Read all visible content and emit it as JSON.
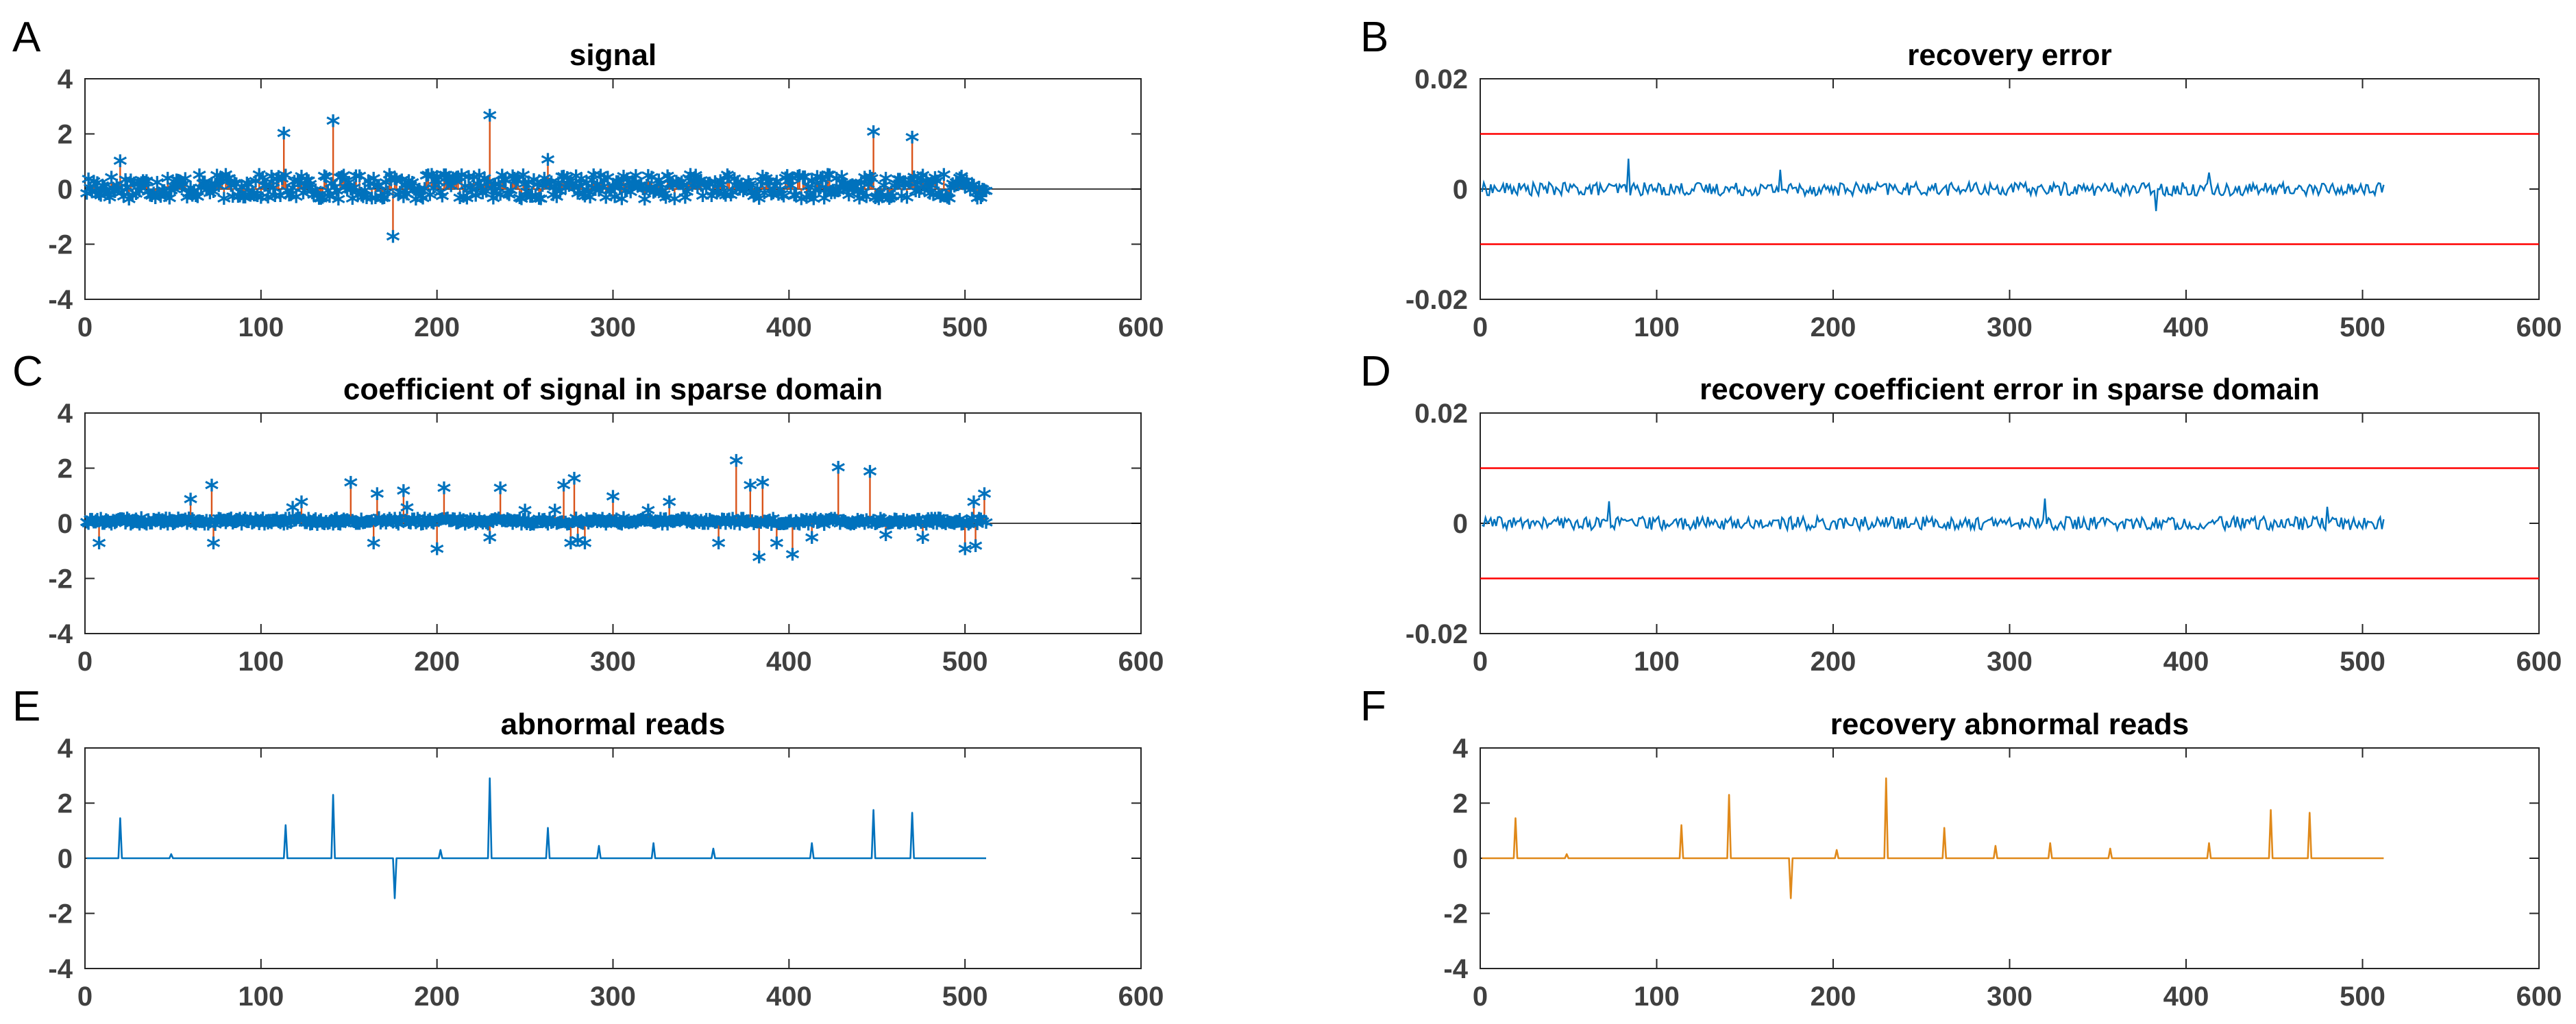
{
  "figure": {
    "panel_labels": [
      "A",
      "B",
      "C",
      "D",
      "E",
      "F"
    ]
  },
  "colors": {
    "blue": "#0072bd",
    "orange": "#d95319",
    "amber": "#e0891a",
    "red": "#ff0000",
    "axis": "#262626",
    "zero_line": "#000000"
  },
  "chart_data": [
    {
      "id": "A",
      "type": "stem",
      "title": "signal",
      "xlabel": "",
      "ylabel": "",
      "xlim": [
        0,
        600
      ],
      "ylim": [
        -4,
        4
      ],
      "xticks": [
        "0",
        "100",
        "200",
        "300",
        "400",
        "500",
        "600"
      ],
      "yticks": [
        "4",
        "2",
        "0",
        "-2",
        "-4"
      ],
      "n_points": 512,
      "noise_amplitude": 0.45,
      "spikes": [
        [
          20,
          0.95
        ],
        [
          113,
          1.95
        ],
        [
          141,
          2.4
        ],
        [
          175,
          -1.8
        ],
        [
          230,
          2.6
        ],
        [
          263,
          1.0
        ],
        [
          448,
          2.0
        ],
        [
          470,
          1.8
        ]
      ],
      "series": [
        {
          "name": "signal",
          "marker": "*",
          "color": "blue",
          "stem_color": "orange"
        }
      ]
    },
    {
      "id": "B",
      "type": "line",
      "title": "recovery error",
      "xlabel": "",
      "ylabel": "",
      "xlim": [
        0,
        600
      ],
      "ylim": [
        -0.02,
        0.02
      ],
      "xticks": [
        "0",
        "100",
        "200",
        "300",
        "400",
        "500",
        "600"
      ],
      "yticks": [
        "0.02",
        "0",
        "-0.02"
      ],
      "n_points": 512,
      "noise_amplitude": 0.0012,
      "spikes": [
        [
          84,
          0.0055
        ],
        [
          170,
          0.0035
        ],
        [
          383,
          -0.004
        ],
        [
          413,
          0.003
        ]
      ],
      "thresholds": [
        0.01,
        -0.01
      ],
      "series": [
        {
          "name": "recovery error",
          "color": "blue"
        }
      ]
    },
    {
      "id": "C",
      "type": "stem",
      "title": "coefficient of signal in sparse domain",
      "xlabel": "",
      "ylabel": "",
      "xlim": [
        0,
        600
      ],
      "ylim": [
        -4,
        4
      ],
      "xticks": [
        "0",
        "100",
        "200",
        "300",
        "400",
        "500",
        "600"
      ],
      "yticks": [
        "4",
        "2",
        "0",
        "-2",
        "-4"
      ],
      "n_points": 512,
      "noise_amplitude": 0.12,
      "spikes": [
        [
          8,
          -0.8
        ],
        [
          60,
          0.8
        ],
        [
          72,
          1.3
        ],
        [
          73,
          -0.8
        ],
        [
          118,
          0.5
        ],
        [
          123,
          0.7
        ],
        [
          151,
          1.4
        ],
        [
          164,
          -0.8
        ],
        [
          166,
          1.0
        ],
        [
          181,
          1.1
        ],
        [
          183,
          0.5
        ],
        [
          200,
          -1.0
        ],
        [
          204,
          1.2
        ],
        [
          230,
          -0.6
        ],
        [
          236,
          1.2
        ],
        [
          250,
          0.4
        ],
        [
          267,
          0.4
        ],
        [
          272,
          1.3
        ],
        [
          276,
          -0.8
        ],
        [
          278,
          1.55
        ],
        [
          280,
          -0.7
        ],
        [
          284,
          -0.8
        ],
        [
          300,
          0.9
        ],
        [
          320,
          0.4
        ],
        [
          332,
          0.7
        ],
        [
          360,
          -0.8
        ],
        [
          370,
          2.2
        ],
        [
          378,
          1.3
        ],
        [
          383,
          -1.3
        ],
        [
          385,
          1.4
        ],
        [
          393,
          -0.8
        ],
        [
          402,
          -1.2
        ],
        [
          413,
          -0.6
        ],
        [
          428,
          1.95
        ],
        [
          446,
          1.8
        ],
        [
          455,
          -0.5
        ],
        [
          476,
          -0.6
        ],
        [
          500,
          -1.0
        ],
        [
          505,
          0.7
        ],
        [
          506,
          -0.9
        ],
        [
          511,
          1.0
        ]
      ],
      "series": [
        {
          "name": "coefficient",
          "marker": "*",
          "color": "blue",
          "stem_color": "orange"
        }
      ]
    },
    {
      "id": "D",
      "type": "line",
      "title": "recovery coefficient error in sparse domain",
      "xlabel": "",
      "ylabel": "",
      "xlim": [
        0,
        600
      ],
      "ylim": [
        -0.02,
        0.02
      ],
      "xticks": [
        "0",
        "100",
        "200",
        "300",
        "400",
        "500",
        "600"
      ],
      "yticks": [
        "0.02",
        "0",
        "-0.02"
      ],
      "n_points": 512,
      "noise_amplitude": 0.0012,
      "spikes": [
        [
          73,
          0.004
        ],
        [
          320,
          0.0045
        ],
        [
          480,
          0.003
        ]
      ],
      "thresholds": [
        0.01,
        -0.01
      ],
      "series": [
        {
          "name": "coefficient error",
          "color": "blue"
        }
      ]
    },
    {
      "id": "E",
      "type": "line",
      "title": "abnormal reads",
      "xlabel": "",
      "ylabel": "",
      "xlim": [
        0,
        600
      ],
      "ylim": [
        -4,
        4
      ],
      "xticks": [
        "0",
        "100",
        "200",
        "300",
        "400",
        "500",
        "600"
      ],
      "yticks": [
        "4",
        "2",
        "0",
        "-2",
        "-4"
      ],
      "n_points": 512,
      "peaks": [
        [
          20,
          1.45
        ],
        [
          49,
          0.15
        ],
        [
          114,
          1.2
        ],
        [
          141,
          2.3
        ],
        [
          176,
          -1.45
        ],
        [
          202,
          0.3
        ],
        [
          230,
          2.9
        ],
        [
          263,
          1.1
        ],
        [
          292,
          0.45
        ],
        [
          323,
          0.55
        ],
        [
          357,
          0.35
        ],
        [
          413,
          0.55
        ],
        [
          448,
          1.75
        ],
        [
          470,
          1.65
        ]
      ],
      "series": [
        {
          "name": "abnormal reads",
          "color": "blue"
        }
      ]
    },
    {
      "id": "F",
      "type": "line",
      "title": "recovery abnormal reads",
      "xlabel": "",
      "ylabel": "",
      "xlim": [
        0,
        600
      ],
      "ylim": [
        -4,
        4
      ],
      "xticks": [
        "0",
        "100",
        "200",
        "300",
        "400",
        "500",
        "600"
      ],
      "yticks": [
        "4",
        "2",
        "0",
        "-2",
        "-4"
      ],
      "n_points": 512,
      "peaks": [
        [
          20,
          1.45
        ],
        [
          49,
          0.15
        ],
        [
          114,
          1.2
        ],
        [
          141,
          2.3
        ],
        [
          176,
          -1.45
        ],
        [
          202,
          0.3
        ],
        [
          230,
          2.9
        ],
        [
          263,
          1.1
        ],
        [
          292,
          0.45
        ],
        [
          323,
          0.55
        ],
        [
          357,
          0.35
        ],
        [
          413,
          0.55
        ],
        [
          448,
          1.75
        ],
        [
          470,
          1.65
        ]
      ],
      "series": [
        {
          "name": "recovery abnormal reads",
          "color": "amber"
        }
      ]
    }
  ]
}
